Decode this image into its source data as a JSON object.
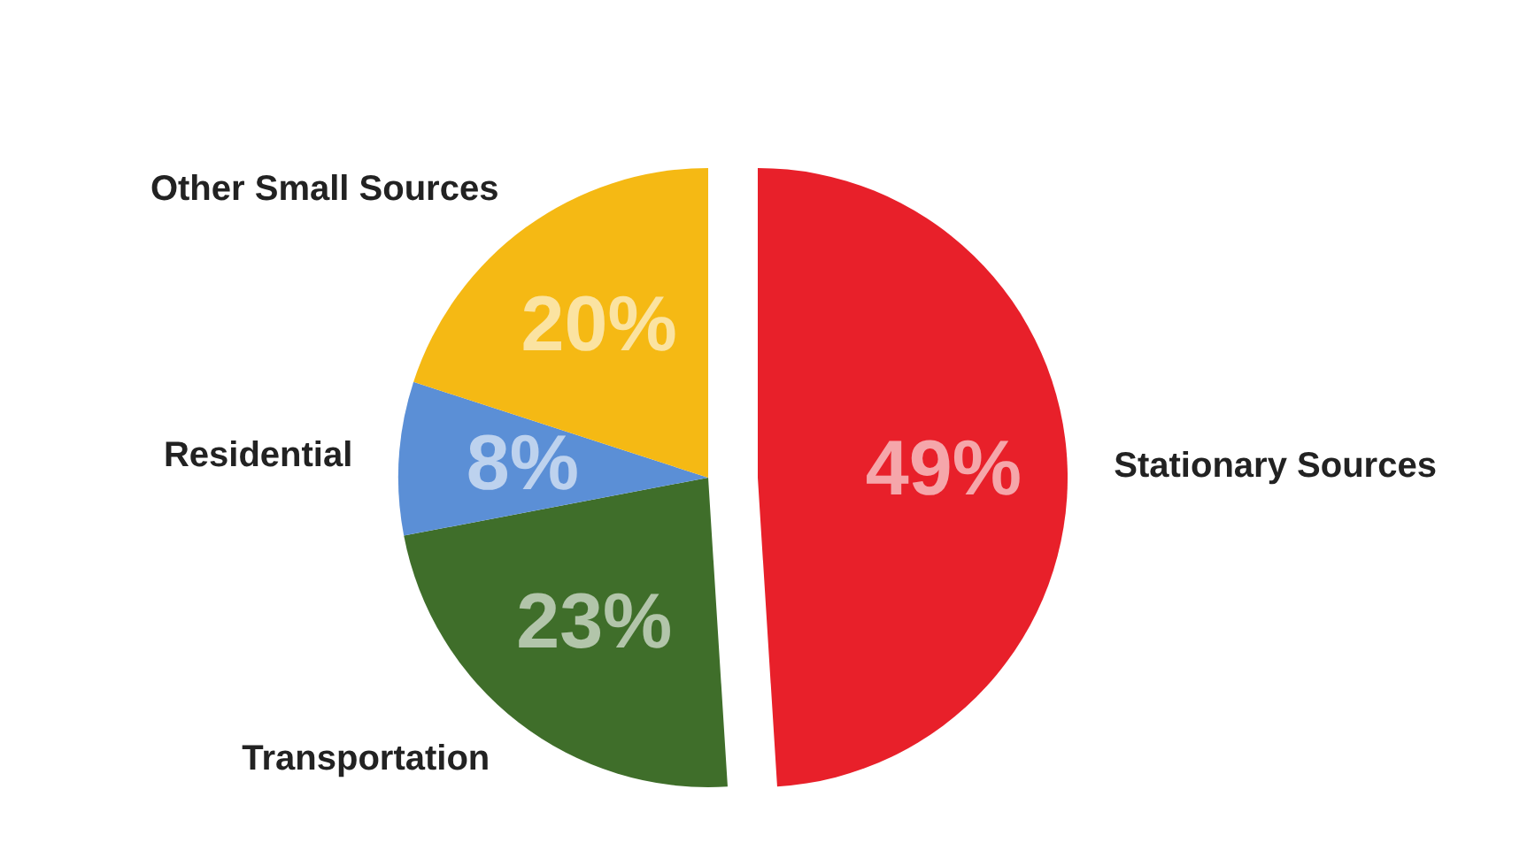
{
  "chart_data": {
    "type": "pie",
    "categories": [
      "Stationary Sources",
      "Transportation",
      "Residential",
      "Other Small Sources"
    ],
    "values": [
      49,
      23,
      8,
      20
    ],
    "colors": [
      "#e8202a",
      "#3f6e2a",
      "#5b8fd6",
      "#f5b914"
    ],
    "value_labels": [
      "49%",
      "23%",
      "8%",
      "20%"
    ],
    "legend": false
  }
}
